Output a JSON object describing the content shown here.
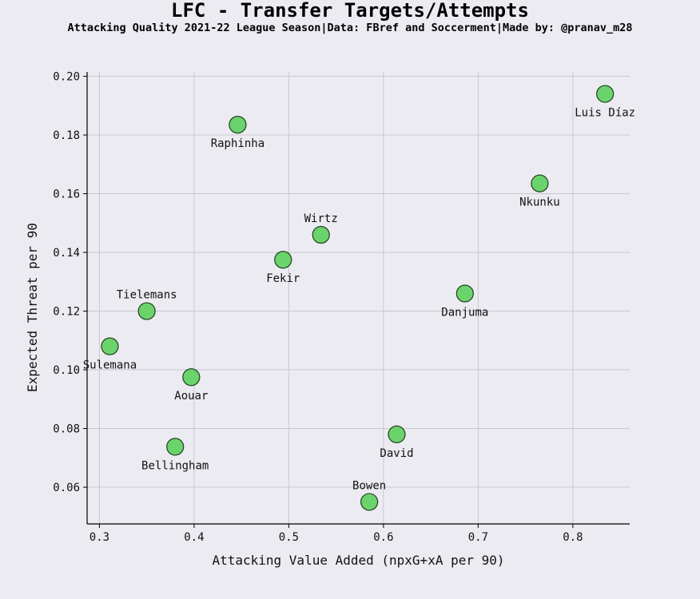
{
  "chart_data": {
    "type": "scatter",
    "title": "LFC - Transfer Targets/Attempts",
    "subtitle": "Attacking Quality 2021-22 League Season|Data: FBref and Soccerment|Made by: @pranav_m28",
    "xlabel": "Attacking Value Added (npxG+xA per 90)",
    "ylabel": "Expected Threat per 90",
    "xlim": [
      0.287,
      0.86
    ],
    "ylim": [
      0.0475,
      0.2015
    ],
    "xticks": [
      "0.3",
      "0.4",
      "0.5",
      "0.6",
      "0.7",
      "0.8"
    ],
    "yticks": [
      "0.06",
      "0.08",
      "0.10",
      "0.12",
      "0.14",
      "0.16",
      "0.18",
      "0.20"
    ],
    "grid": true,
    "point_color": "#6bd36b",
    "points": [
      {
        "label": "Luis Díaz",
        "x": 0.834,
        "y": 0.194,
        "label_pos": "below"
      },
      {
        "label": "Raphinha",
        "x": 0.446,
        "y": 0.1835,
        "label_pos": "below"
      },
      {
        "label": "Nkunku",
        "x": 0.765,
        "y": 0.1635,
        "label_pos": "below"
      },
      {
        "label": "Wirtz",
        "x": 0.534,
        "y": 0.146,
        "label_pos": "above"
      },
      {
        "label": "Fekir",
        "x": 0.494,
        "y": 0.1375,
        "label_pos": "below"
      },
      {
        "label": "Danjuma",
        "x": 0.686,
        "y": 0.126,
        "label_pos": "below"
      },
      {
        "label": "Tielemans",
        "x": 0.35,
        "y": 0.12,
        "label_pos": "above"
      },
      {
        "label": "Sulemana",
        "x": 0.311,
        "y": 0.108,
        "label_pos": "below"
      },
      {
        "label": "Aouar",
        "x": 0.397,
        "y": 0.0975,
        "label_pos": "below"
      },
      {
        "label": "David",
        "x": 0.614,
        "y": 0.078,
        "label_pos": "below"
      },
      {
        "label": "Bellingham",
        "x": 0.38,
        "y": 0.0738,
        "label_pos": "below"
      },
      {
        "label": "Bowen",
        "x": 0.585,
        "y": 0.055,
        "label_pos": "above"
      }
    ]
  }
}
